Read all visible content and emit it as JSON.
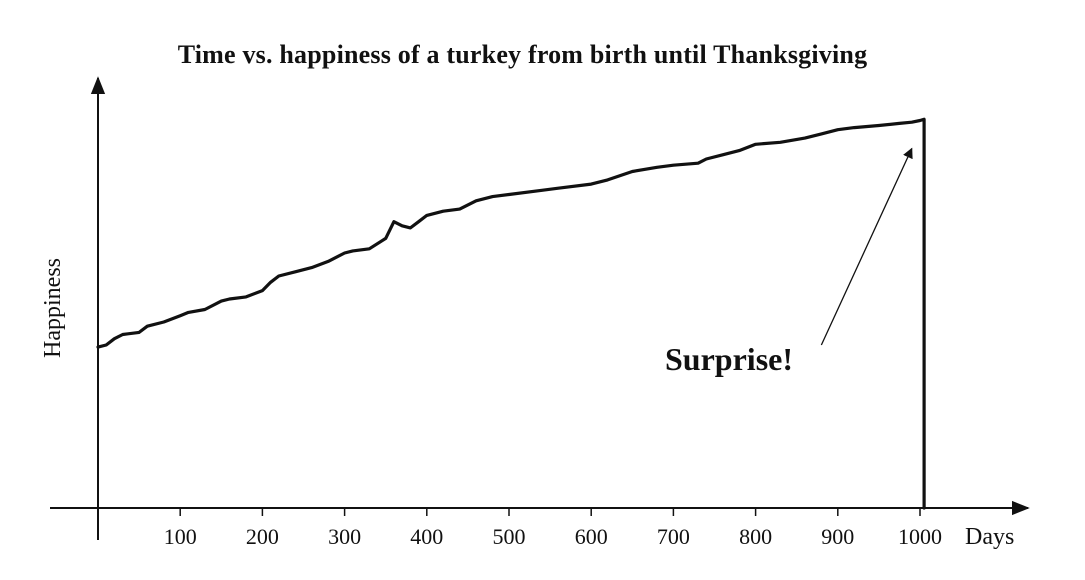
{
  "chart_data": {
    "type": "line",
    "title": "Time vs. happiness of a turkey from birth until Thanksgiving",
    "xlabel": "Days",
    "ylabel": "Happiness",
    "xlim": [
      0,
      1115
    ],
    "ylim": [
      0,
      100
    ],
    "x_ticks": [
      100,
      200,
      300,
      400,
      500,
      600,
      700,
      800,
      900,
      1000
    ],
    "y_ticks": [],
    "grid": false,
    "legend": "none",
    "series": [
      {
        "x": [
          0,
          10,
          20,
          30,
          50,
          60,
          80,
          100,
          110,
          130,
          150,
          160,
          180,
          200,
          210,
          220,
          240,
          260,
          280,
          300,
          310,
          330,
          350,
          360,
          370,
          380,
          390,
          400,
          420,
          440,
          460,
          480,
          500,
          540,
          560,
          600,
          620,
          650,
          680,
          700,
          730,
          740,
          760,
          780,
          800,
          830,
          860,
          880,
          900,
          920,
          950,
          975,
          990,
          1000,
          1005,
          1005
        ],
        "y": [
          38.5,
          39,
          40.5,
          41.5,
          42,
          43.5,
          44.5,
          46,
          46.8,
          47.5,
          49.5,
          50,
          50.5,
          52,
          54,
          55.5,
          56.5,
          57.5,
          59,
          61,
          61.5,
          62,
          64.5,
          68.5,
          67.5,
          67,
          68.5,
          70,
          71,
          71.5,
          73.5,
          74.5,
          75,
          76,
          76.5,
          77.5,
          78.5,
          80.5,
          81.5,
          82,
          82.5,
          83.5,
          84.5,
          85.5,
          87,
          87.5,
          88.5,
          89.5,
          90.5,
          91,
          91.5,
          92,
          92.3,
          92.7,
          93,
          0
        ]
      }
    ],
    "annotations": [
      {
        "text": "Surprise!",
        "arrow_from": [
          880,
          39
        ],
        "arrow_to": [
          990,
          86
        ]
      }
    ]
  },
  "colors": {
    "line": "#111111",
    "axis": "#111111",
    "background": "#ffffff"
  }
}
